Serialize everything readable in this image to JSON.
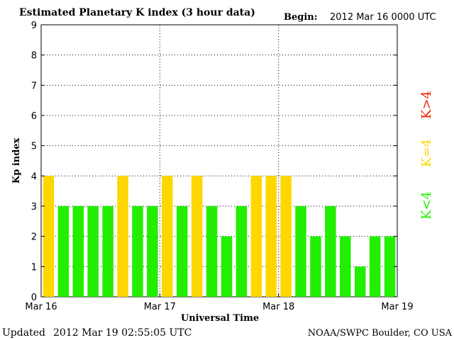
{
  "header": {
    "title": "Estimated Planetary K index (3 hour data)",
    "begin_label": "Begin:",
    "begin_value": "2012 Mar 16 0000 UTC"
  },
  "footer": {
    "updated_label": "Updated",
    "updated_value": "2012 Mar 19 02:55:05 UTC",
    "source": "NOAA/SWPC Boulder, CO USA"
  },
  "legend": {
    "low": "K<4",
    "equal": "K=4",
    "high": "K>4"
  },
  "colors": {
    "low": "#22ee00",
    "equal": "#ffd700",
    "high": "#ee2200",
    "grid": "#000000"
  },
  "chart_data": {
    "type": "bar",
    "title": "Estimated Planetary K index (3 hour data)",
    "xlabel": "Universal Time",
    "ylabel": "Kp index",
    "ylim": [
      0,
      9
    ],
    "y_ticks": [
      "0",
      "1",
      "2",
      "3",
      "4",
      "5",
      "6",
      "7",
      "8",
      "9"
    ],
    "x_tick_labels": [
      "Mar 16",
      "Mar 17",
      "Mar 18",
      "Mar 19"
    ],
    "grid": true,
    "interval_hours": 3,
    "values": [
      4,
      3,
      3,
      3,
      3,
      4,
      3,
      3,
      4,
      3,
      4,
      3,
      2,
      3,
      4,
      4,
      4,
      3,
      2,
      3,
      2,
      1,
      2,
      2
    ]
  }
}
